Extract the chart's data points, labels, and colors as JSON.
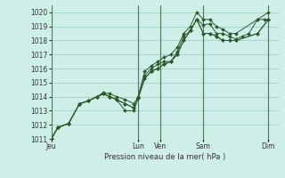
{
  "background_color": "#ceeee8",
  "grid_color": "#99ccbb",
  "line_color": "#2d5a2d",
  "marker_color": "#2d5a2d",
  "xlabel": "Pression niveau de la mer( hPa )",
  "ylim": [
    1011,
    1020.5
  ],
  "yticks": [
    1011,
    1012,
    1013,
    1014,
    1015,
    1016,
    1017,
    1018,
    1019,
    1020
  ],
  "day_labels": [
    "Jeu",
    "",
    "Lun",
    "Ven",
    "",
    "Sam",
    "",
    "Dim"
  ],
  "vline_x": [
    0,
    4,
    5,
    7,
    10
  ],
  "vline_labels": [
    "Jeu",
    "Lun",
    "Ven",
    "Sam",
    "Dim"
  ],
  "xlim": [
    0,
    10.5
  ],
  "lines": [
    {
      "x": [
        0.0,
        0.3,
        0.8,
        1.3,
        1.7,
        2.1,
        2.4,
        2.7,
        3.0,
        3.4,
        3.8,
        4.0,
        4.3,
        4.6,
        4.9,
        5.2,
        5.5,
        5.8,
        6.1,
        6.4,
        6.7,
        7.0,
        7.3,
        7.6,
        7.9,
        8.2,
        8.5,
        8.8,
        9.1,
        9.5,
        9.8,
        10.0
      ],
      "y": [
        1011.0,
        1011.8,
        1012.1,
        1013.5,
        1013.7,
        1014.0,
        1014.2,
        1014.0,
        1013.8,
        1013.5,
        1013.2,
        1013.9,
        1015.5,
        1016.0,
        1016.3,
        1016.5,
        1016.5,
        1017.2,
        1018.3,
        1018.7,
        1019.5,
        1019.1,
        1019.2,
        1018.5,
        1018.5,
        1018.3,
        1018.1,
        1018.3,
        1018.5,
        1019.5,
        1019.5,
        1019.5
      ]
    },
    {
      "x": [
        0.0,
        0.3,
        0.8,
        1.3,
        1.7,
        2.1,
        2.4,
        2.7,
        3.0,
        3.4,
        3.8,
        4.0,
        4.3,
        4.6,
        4.9,
        5.2,
        5.5,
        5.8,
        6.1,
        6.4,
        6.7,
        7.0,
        7.3,
        7.6,
        7.9,
        8.2,
        8.5,
        9.5,
        10.0
      ],
      "y": [
        1011.0,
        1011.8,
        1012.1,
        1013.5,
        1013.7,
        1014.0,
        1014.2,
        1014.0,
        1013.8,
        1013.5,
        1013.2,
        1013.9,
        1015.3,
        1015.8,
        1016.0,
        1016.3,
        1016.5,
        1017.0,
        1018.0,
        1018.7,
        1019.5,
        1018.5,
        1018.5,
        1018.3,
        1018.0,
        1018.0,
        1018.0,
        1018.5,
        1019.5
      ]
    },
    {
      "x": [
        0.0,
        0.3,
        0.8,
        1.3,
        1.7,
        2.1,
        2.4,
        2.7,
        3.0,
        3.4,
        3.8,
        4.0,
        4.3,
        4.6,
        4.9,
        5.2,
        5.5,
        5.8,
        6.1,
        6.4,
        6.7,
        7.0,
        7.3,
        7.6,
        7.9,
        8.2,
        8.5,
        9.5,
        10.0
      ],
      "y": [
        1011.0,
        1011.8,
        1012.1,
        1013.5,
        1013.7,
        1014.0,
        1014.2,
        1014.0,
        1013.8,
        1013.0,
        1013.0,
        1013.9,
        1015.3,
        1015.8,
        1016.0,
        1016.3,
        1016.5,
        1017.0,
        1018.0,
        1018.7,
        1019.5,
        1018.5,
        1018.5,
        1018.3,
        1018.0,
        1018.0,
        1018.0,
        1018.5,
        1019.5
      ]
    },
    {
      "x": [
        0.0,
        0.3,
        0.8,
        1.3,
        1.7,
        2.1,
        2.4,
        2.7,
        3.0,
        3.4,
        3.8,
        4.0,
        4.3,
        4.6,
        4.9,
        5.2,
        5.5,
        5.8,
        6.1,
        6.4,
        6.7,
        7.0,
        7.3,
        7.6,
        7.9,
        8.2,
        8.5,
        9.5,
        10.0
      ],
      "y": [
        1011.0,
        1011.8,
        1012.1,
        1013.5,
        1013.7,
        1014.0,
        1014.3,
        1014.2,
        1014.0,
        1013.8,
        1013.5,
        1014.0,
        1015.8,
        1016.2,
        1016.5,
        1016.8,
        1017.0,
        1017.5,
        1018.5,
        1019.0,
        1020.0,
        1019.5,
        1019.5,
        1019.0,
        1018.8,
        1018.5,
        1018.5,
        1019.5,
        1020.0
      ]
    }
  ]
}
